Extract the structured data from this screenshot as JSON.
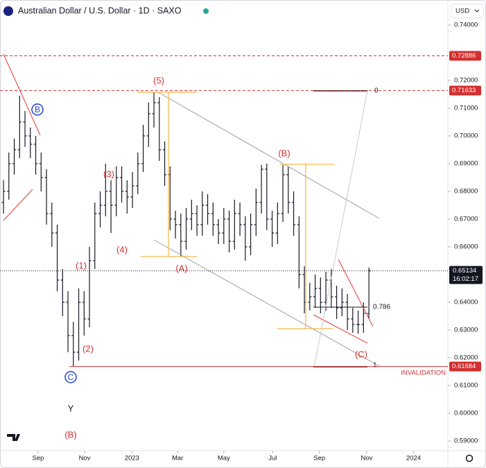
{
  "chart_data": {
    "type": "ohlc",
    "title": "Australian Dollar / U.S. Dollar · 1D · SAXO",
    "currency": "USD",
    "ohlc": [
      [
        0.676,
        0.684,
        0.672,
        0.68
      ],
      [
        0.68,
        0.694,
        0.677,
        0.69
      ],
      [
        0.69,
        0.699,
        0.686,
        0.695
      ],
      [
        0.695,
        0.7145,
        0.692,
        0.705
      ],
      [
        0.705,
        0.709,
        0.696,
        0.7
      ],
      [
        0.7,
        0.703,
        0.692,
        0.697
      ],
      [
        0.697,
        0.7,
        0.686,
        0.69
      ],
      [
        0.69,
        0.694,
        0.68,
        0.685
      ],
      [
        0.685,
        0.688,
        0.668,
        0.672
      ],
      [
        0.672,
        0.676,
        0.66,
        0.665
      ],
      [
        0.665,
        0.668,
        0.644,
        0.648
      ],
      [
        0.648,
        0.652,
        0.635,
        0.64
      ],
      [
        0.64,
        0.644,
        0.622,
        0.628
      ],
      [
        0.628,
        0.633,
        0.617,
        0.622
      ],
      [
        0.622,
        0.645,
        0.619,
        0.64
      ],
      [
        0.64,
        0.644,
        0.628,
        0.634
      ],
      [
        0.634,
        0.66,
        0.631,
        0.655
      ],
      [
        0.655,
        0.676,
        0.652,
        0.672
      ],
      [
        0.672,
        0.68,
        0.667,
        0.675
      ],
      [
        0.675,
        0.69,
        0.671,
        0.68
      ],
      [
        0.68,
        0.684,
        0.665,
        0.675
      ],
      [
        0.675,
        0.689,
        0.671,
        0.685
      ],
      [
        0.685,
        0.689,
        0.676,
        0.68
      ],
      [
        0.68,
        0.684,
        0.672,
        0.678
      ],
      [
        0.678,
        0.687,
        0.674,
        0.682
      ],
      [
        0.682,
        0.694,
        0.679,
        0.69
      ],
      [
        0.69,
        0.704,
        0.687,
        0.7
      ],
      [
        0.7,
        0.712,
        0.696,
        0.708
      ],
      [
        0.708,
        0.7157,
        0.703,
        0.712
      ],
      [
        0.712,
        0.714,
        0.691,
        0.695
      ],
      [
        0.695,
        0.698,
        0.682,
        0.686
      ],
      [
        0.686,
        0.689,
        0.666,
        0.67
      ],
      [
        0.67,
        0.673,
        0.663,
        0.668
      ],
      [
        0.668,
        0.672,
        0.6565,
        0.662
      ],
      [
        0.662,
        0.674,
        0.659,
        0.67
      ],
      [
        0.67,
        0.677,
        0.666,
        0.672
      ],
      [
        0.672,
        0.675,
        0.664,
        0.668
      ],
      [
        0.668,
        0.68,
        0.664,
        0.675
      ],
      [
        0.675,
        0.679,
        0.668,
        0.672
      ],
      [
        0.672,
        0.676,
        0.664,
        0.668
      ],
      [
        0.668,
        0.67,
        0.661,
        0.665
      ],
      [
        0.665,
        0.674,
        0.661,
        0.67
      ],
      [
        0.67,
        0.673,
        0.658,
        0.662
      ],
      [
        0.662,
        0.677,
        0.659,
        0.672
      ],
      [
        0.672,
        0.676,
        0.664,
        0.668
      ],
      [
        0.668,
        0.671,
        0.655,
        0.66
      ],
      [
        0.66,
        0.672,
        0.657,
        0.668
      ],
      [
        0.668,
        0.681,
        0.664,
        0.676
      ],
      [
        0.676,
        0.6895,
        0.672,
        0.688
      ],
      [
        0.688,
        0.69,
        0.666,
        0.67
      ],
      [
        0.67,
        0.673,
        0.66,
        0.665
      ],
      [
        0.665,
        0.676,
        0.661,
        0.672
      ],
      [
        0.672,
        0.6895,
        0.669,
        0.686
      ],
      [
        0.686,
        0.689,
        0.672,
        0.676
      ],
      [
        0.676,
        0.68,
        0.664,
        0.668
      ],
      [
        0.668,
        0.671,
        0.645,
        0.65
      ],
      [
        0.65,
        0.653,
        0.636,
        0.64
      ],
      [
        0.64,
        0.647,
        0.637,
        0.642
      ],
      [
        0.642,
        0.65,
        0.638,
        0.645
      ],
      [
        0.645,
        0.649,
        0.636,
        0.64
      ],
      [
        0.64,
        0.651,
        0.637,
        0.648
      ],
      [
        0.648,
        0.652,
        0.638,
        0.642
      ],
      [
        0.642,
        0.646,
        0.634,
        0.638
      ],
      [
        0.638,
        0.645,
        0.635,
        0.64
      ],
      [
        0.64,
        0.643,
        0.63,
        0.634
      ],
      [
        0.634,
        0.638,
        0.629,
        0.632
      ],
      [
        0.632,
        0.637,
        0.6287,
        0.632
      ],
      [
        0.632,
        0.64,
        0.629,
        0.636
      ],
      [
        0.636,
        0.6525,
        0.634,
        0.65134
      ]
    ],
    "xlim": [
      -0.65,
      82.7
    ],
    "xticks": [
      {
        "value": 6.45,
        "label": "Sep"
      },
      {
        "value": 15.1,
        "label": "Nov"
      },
      {
        "value": 23.9,
        "label": "2023"
      },
      {
        "value": 32.4,
        "label": "Mar"
      },
      {
        "value": 41.0,
        "label": "May"
      },
      {
        "value": 50.1,
        "label": "Jul"
      },
      {
        "value": 58.8,
        "label": "Sep"
      },
      {
        "value": 67.6,
        "label": "Nov"
      },
      {
        "value": 76.3,
        "label": "2024"
      }
    ],
    "ylim": [
      0.74,
      0.59
    ],
    "yticks": [
      {
        "value": 0.74,
        "label": "0.74000"
      },
      {
        "value": 0.72,
        "label": "0.72000"
      },
      {
        "value": 0.71,
        "label": "0.71000"
      },
      {
        "value": 0.7,
        "label": "0.70000"
      },
      {
        "value": 0.69,
        "label": "0.69000"
      },
      {
        "value": 0.68,
        "label": "0.68000"
      },
      {
        "value": 0.67,
        "label": "0.67000"
      },
      {
        "value": 0.66,
        "label": "0.66000"
      },
      {
        "value": 0.64,
        "label": "0.64000"
      },
      {
        "value": 0.63,
        "label": "0.63000"
      },
      {
        "value": 0.62,
        "label": "0.62000"
      },
      {
        "value": 0.61,
        "label": "0.61000"
      },
      {
        "value": 0.6,
        "label": "0.60000"
      },
      {
        "value": 0.59,
        "label": "0.59000"
      }
    ],
    "levels": [
      0.72886,
      0.71633,
      0.61684
    ],
    "last_price": 0.65134,
    "countdown": "16:02:17",
    "annotations": {
      "wave_5": "(5)",
      "wave_b": "(B)",
      "wave_3": "(3)",
      "wave_4": "(4)",
      "wave_1": "(1)",
      "wave_2": "(2)",
      "wave_a": "(A)",
      "wave_c": "(C)",
      "circle_b": "B",
      "circle_c": "C",
      "y": "Y",
      "wave_b_low": "(B)",
      "fib_0": "0",
      "fib_786": "0.786",
      "fib_1": "1",
      "invalidation": "INVALIDATION"
    },
    "color": "#131722"
  }
}
